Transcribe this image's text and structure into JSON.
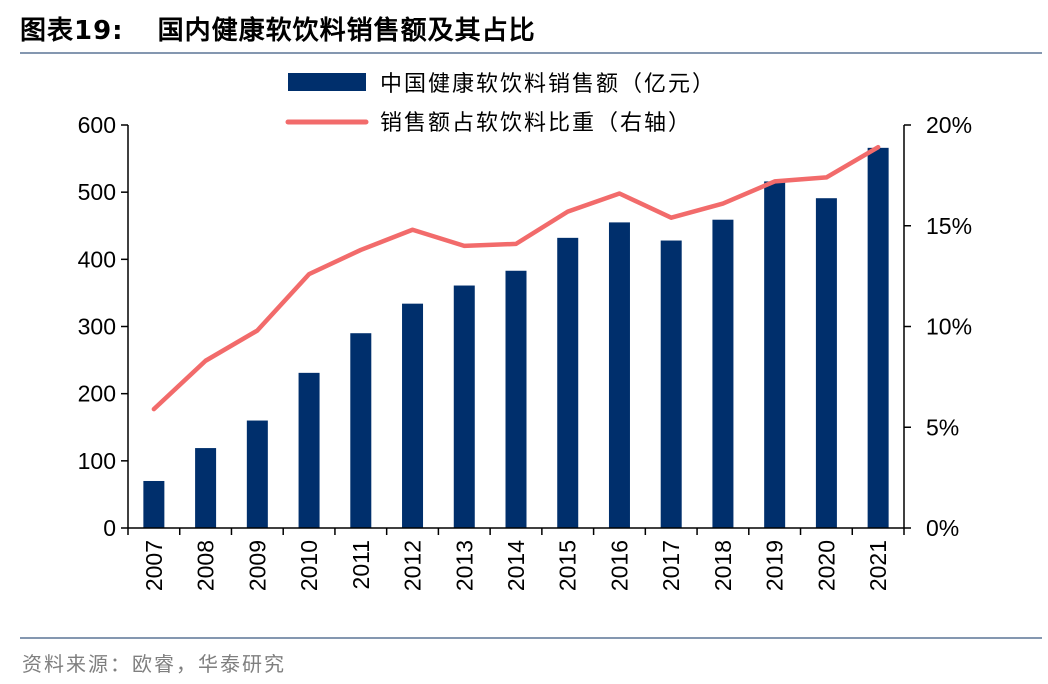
{
  "title": {
    "number": "图表19:",
    "text": "国内健康软饮料销售额及其占比"
  },
  "source": "资料来源：欧睿，华泰研究",
  "colors": {
    "bar": "#002f6c",
    "line": "#f26b6b",
    "rule": "#8497b0"
  },
  "chart_data": {
    "type": "bar",
    "categories": [
      "2007",
      "2008",
      "2009",
      "2010",
      "2011",
      "2012",
      "2013",
      "2014",
      "2015",
      "2016",
      "2017",
      "2018",
      "2019",
      "2020",
      "2021"
    ],
    "series": [
      {
        "name": "中国健康软饮料销售额（亿元）",
        "type": "bar",
        "axis": "left",
        "values": [
          70,
          119,
          160,
          231,
          290,
          334,
          361,
          383,
          432,
          455,
          428,
          459,
          516,
          491,
          566
        ]
      },
      {
        "name": "销售额占软饮料比重（右轴）",
        "type": "line",
        "axis": "right",
        "values": [
          5.9,
          8.3,
          9.8,
          12.6,
          13.8,
          14.8,
          14.0,
          14.1,
          15.7,
          16.6,
          15.4,
          16.1,
          17.2,
          17.4,
          18.9
        ]
      }
    ],
    "y_left": {
      "ylim": [
        0,
        600
      ],
      "ticks": [
        "0",
        "100",
        "200",
        "300",
        "400",
        "500",
        "600"
      ]
    },
    "y_right": {
      "ylim": [
        0,
        20
      ],
      "ticks": [
        "0%",
        "5%",
        "10%",
        "15%",
        "20%"
      ]
    },
    "legend": "top-center",
    "grid": false
  }
}
